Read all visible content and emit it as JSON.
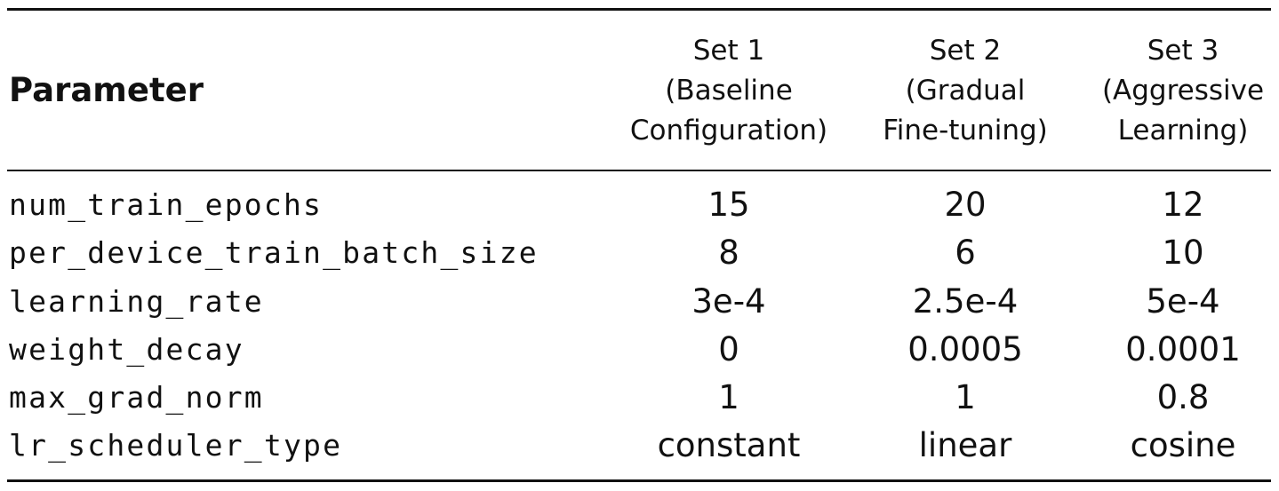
{
  "header": {
    "parameter_label": "Parameter",
    "sets": [
      {
        "lines": [
          "Set 1",
          "(Baseline",
          "Configuration)"
        ]
      },
      {
        "lines": [
          "Set 2",
          "(Gradual",
          "Fine-tuning)"
        ]
      },
      {
        "lines": [
          "Set 3",
          "(Aggressive",
          "Learning)"
        ]
      }
    ]
  },
  "rows": [
    {
      "param": "num_train_epochs",
      "values": [
        "15",
        "20",
        "12"
      ]
    },
    {
      "param": "per_device_train_batch_size",
      "values": [
        "8",
        "6",
        "10"
      ]
    },
    {
      "param": "learning_rate",
      "values": [
        "3e-4",
        "2.5e-4",
        "5e-4"
      ]
    },
    {
      "param": "weight_decay",
      "values": [
        "0",
        "0.0005",
        "0.0001"
      ]
    },
    {
      "param": "max_grad_norm",
      "values": [
        "1",
        "1",
        "0.8"
      ]
    },
    {
      "param": "lr_scheduler_type",
      "values": [
        "constant",
        "linear",
        "cosine"
      ]
    }
  ]
}
